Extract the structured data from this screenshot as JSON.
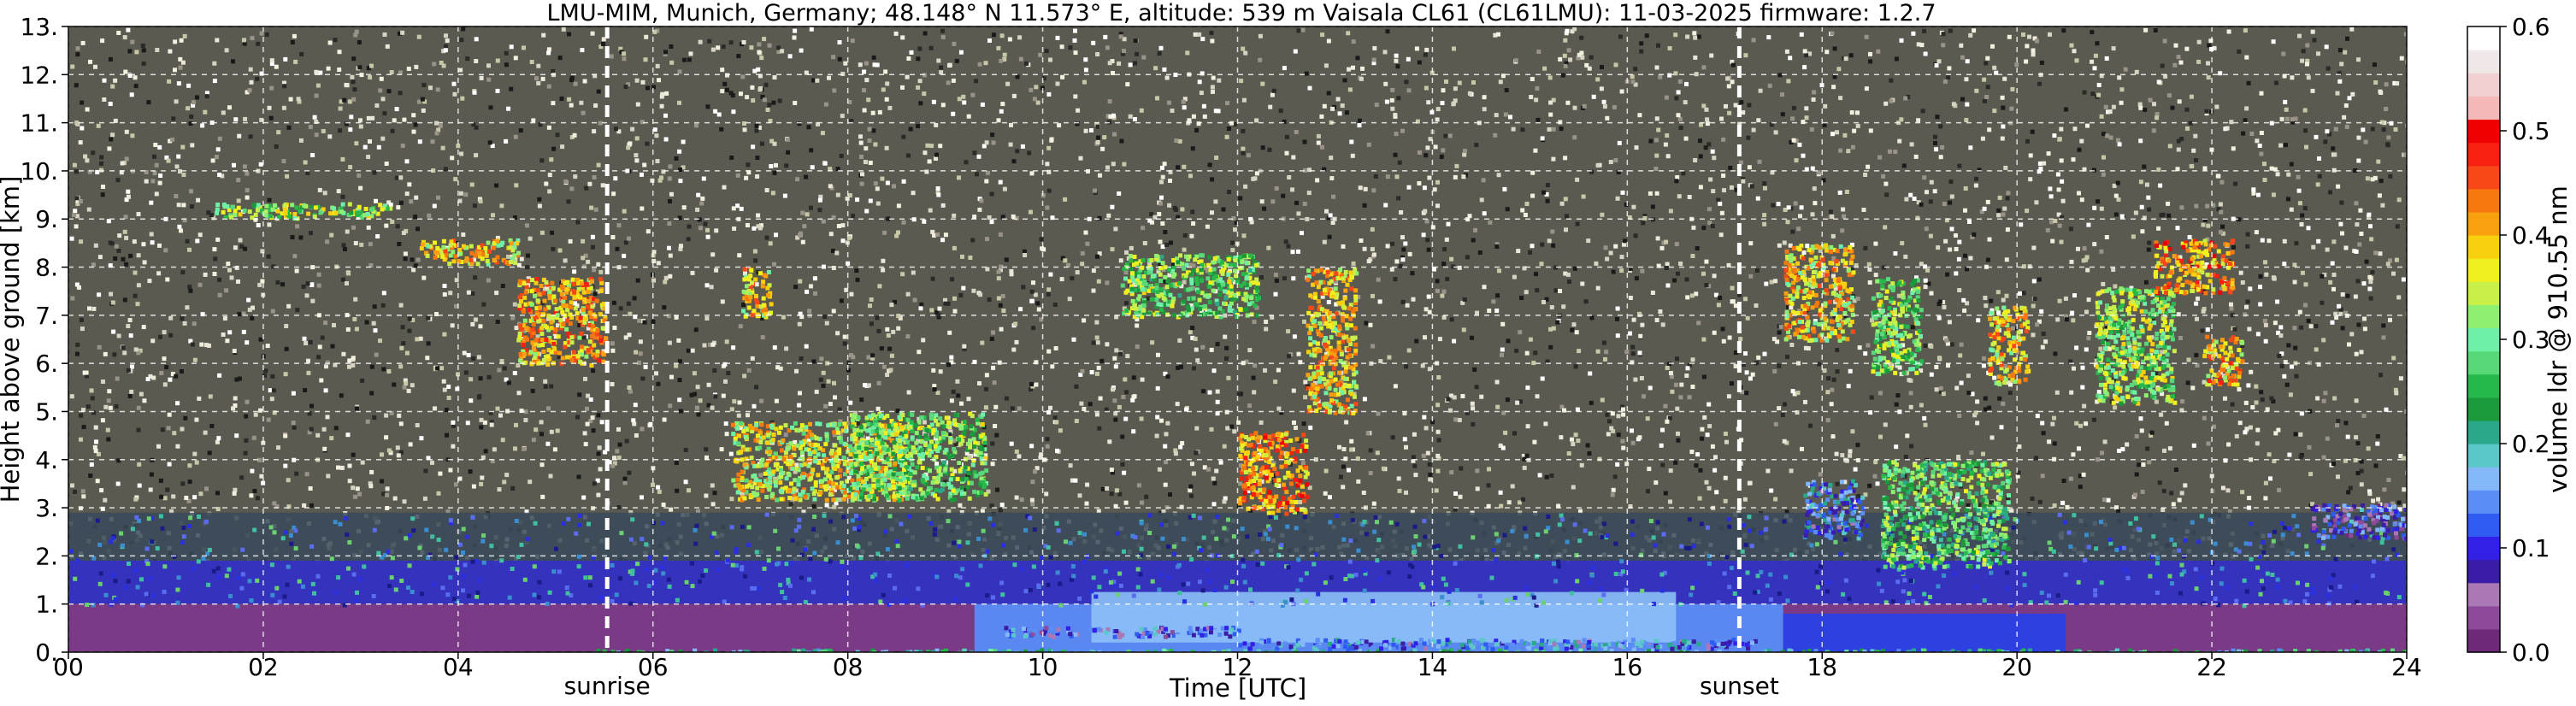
{
  "chart_data": {
    "type": "heatmap",
    "title": "LMU-MIM, Munich, Germany; 48.148° N 11.573° E, altitude: 539 m    Vaisala CL61 (CL61LMU): 11-03-2025    firmware: 1.2.7",
    "xlabel": "Time [UTC]",
    "ylabel": "Height above ground [km]",
    "xlim": [
      0,
      24
    ],
    "ylim": [
      0,
      13
    ],
    "x_ticks": [
      "00",
      "02",
      "04",
      "06",
      "08",
      "10",
      "12",
      "14",
      "16",
      "18",
      "20",
      "22",
      "24"
    ],
    "y_ticks": [
      "0.",
      "1.",
      "2.",
      "3.",
      "4.",
      "5.",
      "6.",
      "7.",
      "8.",
      "9.",
      "10.",
      "11.",
      "12.",
      "13."
    ],
    "grid": true,
    "colorbar": {
      "label": "volume ldr @ 910.55 nm",
      "range": [
        0.0,
        0.6
      ],
      "ticks": [
        "0.0",
        "0.1",
        "0.2",
        "0.3",
        "0.4",
        "0.5",
        "0.6"
      ],
      "colors": [
        "#6e2a78",
        "#8e4a9a",
        "#aa78b4",
        "#3b1ca6",
        "#3220e6",
        "#2f5cf0",
        "#5a8ef4",
        "#85b8f8",
        "#5ac8c8",
        "#2aa88a",
        "#1a9a3a",
        "#26b84a",
        "#58d878",
        "#6ef0a8",
        "#8ef070",
        "#c8f048",
        "#f0f020",
        "#f8d010",
        "#f8a010",
        "#f87810",
        "#f84818",
        "#f82010",
        "#f00000",
        "#f4b8b8",
        "#f0d0d0",
        "#f0e8e8",
        "#ffffff"
      ]
    },
    "annotations": [
      {
        "text": "sunrise",
        "x": 5.53
      },
      {
        "text": "sunset",
        "x": 17.15
      }
    ],
    "features": [
      {
        "x": [
          5.4,
          24.0
        ],
        "y": [
          0.0,
          0.08
        ],
        "v": 0.22
      },
      {
        "x": [
          9.6,
          12.0
        ],
        "y": [
          0.35,
          0.55
        ],
        "v": 0.12
      },
      {
        "x": [
          12.0,
          17.3
        ],
        "y": [
          0.1,
          0.3
        ],
        "v": 0.14
      },
      {
        "x": [
          1.5,
          3.3
        ],
        "y": [
          9.05,
          9.35
        ],
        "v": 0.32
      },
      {
        "x": [
          3.6,
          4.6
        ],
        "y": [
          8.1,
          8.6
        ],
        "v": 0.38
      },
      {
        "x": [
          4.6,
          5.5
        ],
        "y": [
          6.0,
          7.8
        ],
        "v": 0.4
      },
      {
        "x": [
          6.9,
          7.2
        ],
        "y": [
          7.0,
          8.0
        ],
        "v": 0.38
      },
      {
        "x": [
          6.8,
          8.6
        ],
        "y": [
          3.2,
          4.8
        ],
        "v": 0.36
      },
      {
        "x": [
          8.0,
          9.4
        ],
        "y": [
          3.2,
          5.0
        ],
        "v": 0.3
      },
      {
        "x": [
          10.8,
          12.2
        ],
        "y": [
          7.0,
          8.3
        ],
        "v": 0.3
      },
      {
        "x": [
          12.0,
          12.7
        ],
        "y": [
          2.9,
          4.6
        ],
        "v": 0.42
      },
      {
        "x": [
          12.7,
          13.2
        ],
        "y": [
          5.0,
          8.0
        ],
        "v": 0.38
      },
      {
        "x": [
          17.6,
          18.3
        ],
        "y": [
          6.5,
          8.5
        ],
        "v": 0.38
      },
      {
        "x": [
          18.5,
          19.0
        ],
        "y": [
          5.8,
          7.8
        ],
        "v": 0.3
      },
      {
        "x": [
          19.7,
          20.1
        ],
        "y": [
          5.6,
          7.2
        ],
        "v": 0.38
      },
      {
        "x": [
          20.8,
          21.6
        ],
        "y": [
          5.2,
          7.6
        ],
        "v": 0.32
      },
      {
        "x": [
          21.4,
          22.2
        ],
        "y": [
          7.5,
          8.6
        ],
        "v": 0.42
      },
      {
        "x": [
          21.9,
          22.3
        ],
        "y": [
          5.6,
          6.6
        ],
        "v": 0.4
      },
      {
        "x": [
          18.6,
          19.9
        ],
        "y": [
          1.8,
          4.0
        ],
        "v": 0.28
      },
      {
        "x": [
          17.8,
          18.4
        ],
        "y": [
          2.4,
          3.6
        ],
        "v": 0.14
      },
      {
        "x": [
          23.0,
          24.0
        ],
        "y": [
          2.4,
          3.1
        ],
        "v": 0.1
      }
    ]
  }
}
